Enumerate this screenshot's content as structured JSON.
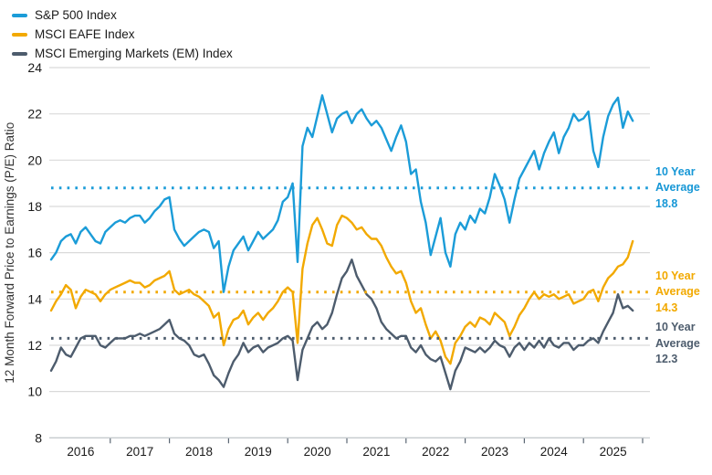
{
  "chart_data": {
    "type": "line",
    "title": "",
    "ylabel": "12 Month Forward Price to Earnings (P/E) Ratio",
    "x_unit": "month",
    "x_range_start": "2016-01",
    "x_range_end": "2025-11",
    "x_tick_labels": [
      "2016",
      "2017",
      "2018",
      "2019",
      "2020",
      "2021",
      "2022",
      "2023",
      "2024",
      "2025"
    ],
    "ylim": [
      8,
      24
    ],
    "yticks": [
      8,
      10,
      12,
      14,
      16,
      18,
      20,
      22,
      24
    ],
    "grid": "horizontal",
    "legend_position": "top-left",
    "colors": {
      "sp500": "#1b9cd8",
      "eafe": "#f2a900",
      "em": "#4d5c6d",
      "gridline": "#d9d9d9",
      "axis_line": "#c4c9cd",
      "tick_mark": "#5a6673",
      "text": "#1a1a1a"
    },
    "series": [
      {
        "name": "S&P 500 Index",
        "color": "#1b9cd8",
        "average": 18.8,
        "values": [
          15.7,
          16.0,
          16.5,
          16.7,
          16.8,
          16.4,
          16.9,
          17.1,
          16.8,
          16.5,
          16.4,
          16.9,
          17.1,
          17.3,
          17.4,
          17.3,
          17.5,
          17.6,
          17.6,
          17.3,
          17.5,
          17.8,
          18.0,
          18.3,
          18.4,
          17.0,
          16.6,
          16.3,
          16.5,
          16.7,
          16.9,
          17.0,
          16.9,
          16.2,
          16.5,
          14.3,
          15.4,
          16.1,
          16.4,
          16.7,
          16.1,
          16.5,
          16.9,
          16.6,
          16.8,
          17.0,
          17.4,
          18.2,
          18.4,
          19.0,
          15.6,
          20.6,
          21.4,
          21.0,
          21.9,
          22.8,
          22.0,
          21.2,
          21.8,
          22.0,
          22.1,
          21.6,
          22.0,
          22.2,
          21.8,
          21.5,
          21.7,
          21.4,
          20.9,
          20.4,
          21.0,
          21.5,
          20.8,
          19.4,
          19.6,
          18.2,
          17.3,
          15.9,
          16.7,
          17.5,
          16.0,
          15.4,
          16.8,
          17.3,
          17.0,
          17.6,
          17.3,
          17.9,
          17.7,
          18.4,
          19.4,
          18.9,
          18.3,
          17.3,
          18.3,
          19.2,
          19.6,
          20.0,
          20.4,
          19.6,
          20.3,
          20.8,
          21.2,
          20.3,
          21.0,
          21.4,
          22.0,
          21.7,
          21.8,
          22.1,
          20.4,
          19.7,
          21.0,
          21.9,
          22.4,
          22.7,
          21.4,
          22.1,
          21.7
        ]
      },
      {
        "name": "MSCI EAFE Index",
        "color": "#f2a900",
        "average": 14.3,
        "values": [
          13.5,
          13.9,
          14.2,
          14.6,
          14.4,
          13.6,
          14.1,
          14.4,
          14.3,
          14.2,
          13.9,
          14.2,
          14.4,
          14.5,
          14.6,
          14.7,
          14.8,
          14.7,
          14.7,
          14.5,
          14.6,
          14.8,
          14.9,
          15.0,
          15.2,
          14.4,
          14.2,
          14.3,
          14.4,
          14.2,
          14.1,
          13.9,
          13.7,
          13.2,
          13.4,
          12.0,
          12.7,
          13.1,
          13.2,
          13.5,
          12.9,
          13.2,
          13.4,
          13.1,
          13.4,
          13.6,
          13.9,
          14.3,
          14.5,
          14.3,
          12.1,
          15.3,
          16.4,
          17.2,
          17.5,
          17.0,
          16.4,
          16.3,
          17.2,
          17.6,
          17.5,
          17.3,
          17.0,
          17.1,
          16.8,
          16.6,
          16.6,
          16.3,
          15.8,
          15.4,
          15.1,
          15.2,
          14.7,
          13.9,
          13.4,
          13.6,
          12.9,
          12.3,
          12.6,
          12.2,
          11.5,
          11.2,
          12.1,
          12.4,
          12.8,
          13.0,
          12.8,
          13.2,
          13.1,
          12.9,
          13.4,
          13.2,
          13.0,
          12.4,
          12.8,
          13.3,
          13.6,
          14.0,
          14.3,
          14.0,
          14.2,
          14.1,
          14.2,
          14.0,
          14.1,
          14.2,
          13.8,
          13.9,
          14.0,
          14.3,
          14.4,
          13.9,
          14.5,
          14.9,
          15.1,
          15.4,
          15.5,
          15.8,
          16.5
        ]
      },
      {
        "name": "MSCI Emerging Markets (EM) Index",
        "color": "#4d5c6d",
        "average": 12.3,
        "values": [
          10.9,
          11.3,
          11.9,
          11.6,
          11.5,
          11.9,
          12.3,
          12.4,
          12.4,
          12.4,
          12.0,
          11.9,
          12.1,
          12.3,
          12.3,
          12.3,
          12.4,
          12.4,
          12.5,
          12.4,
          12.5,
          12.6,
          12.7,
          12.9,
          13.1,
          12.5,
          12.3,
          12.2,
          12.0,
          11.6,
          11.5,
          11.6,
          11.2,
          10.7,
          10.5,
          10.2,
          10.8,
          11.3,
          11.6,
          12.1,
          11.7,
          11.9,
          12.0,
          11.7,
          11.9,
          12.0,
          12.1,
          12.3,
          12.4,
          12.2,
          10.5,
          11.8,
          12.3,
          12.8,
          13.0,
          12.7,
          12.9,
          13.4,
          14.2,
          14.9,
          15.2,
          15.7,
          15.0,
          14.6,
          14.2,
          14.0,
          13.6,
          13.0,
          12.7,
          12.5,
          12.3,
          12.4,
          12.4,
          11.9,
          11.7,
          12.0,
          11.6,
          11.4,
          11.3,
          11.5,
          10.8,
          10.1,
          10.9,
          11.3,
          11.9,
          11.8,
          11.7,
          11.9,
          11.7,
          11.9,
          12.2,
          12.0,
          11.9,
          11.5,
          11.9,
          12.1,
          11.8,
          12.1,
          11.9,
          12.2,
          11.9,
          12.3,
          12.0,
          11.9,
          12.1,
          12.1,
          11.8,
          12.0,
          12.0,
          12.2,
          12.3,
          12.1,
          12.6,
          13.0,
          13.4,
          14.2,
          13.6,
          13.7,
          13.5
        ]
      }
    ],
    "annotations": [
      {
        "series": "S&P 500 Index",
        "line1": "10 Year",
        "line2": "Average",
        "line3": "18.8",
        "value": 18.8,
        "color": "#1697d6"
      },
      {
        "series": "MSCI EAFE Index",
        "line1": "10 Year",
        "line2": "Average",
        "line3": "14.3",
        "value": 14.3,
        "color": "#f2a900"
      },
      {
        "series": "MSCI Emerging Markets (EM) Index",
        "line1": "10 Year",
        "line2": "Average",
        "line3": "12.3",
        "value": 12.3,
        "color": "#4d5c6d"
      }
    ]
  }
}
